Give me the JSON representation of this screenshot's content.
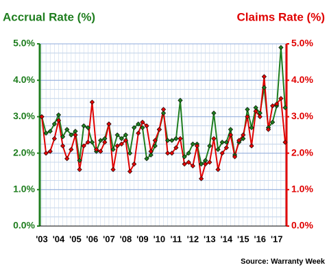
{
  "chart_data": {
    "type": "line",
    "title_left": "Accrual Rate (%)",
    "title_right": "Claims Rate (%)",
    "source": "Source: Warranty Week",
    "categories": [
      "'03",
      null,
      null,
      null,
      "'04",
      null,
      null,
      null,
      "'05",
      null,
      null,
      null,
      "'06",
      null,
      null,
      null,
      "'07",
      null,
      null,
      null,
      "'08",
      null,
      null,
      null,
      "'09",
      null,
      null,
      null,
      "'10",
      null,
      null,
      null,
      "'11",
      null,
      null,
      null,
      "'12",
      null,
      null,
      null,
      "'13",
      null,
      null,
      null,
      "'14",
      null,
      null,
      null,
      "'15",
      null,
      null,
      null,
      "'16",
      null,
      null,
      null,
      "'17",
      null,
      null
    ],
    "series": [
      {
        "name": "Accrual Rate (%)",
        "color": "#1e7d1e",
        "axis": "y",
        "values": [
          3.0,
          2.55,
          2.6,
          2.8,
          3.05,
          2.45,
          2.65,
          2.5,
          2.6,
          1.8,
          2.75,
          2.7,
          2.3,
          2.05,
          2.35,
          2.4,
          2.8,
          2.1,
          2.5,
          2.4,
          2.5,
          2.0,
          2.7,
          2.8,
          2.7,
          1.85,
          1.95,
          2.2,
          2.65,
          3.1,
          2.35,
          2.35,
          2.4,
          3.45,
          1.9,
          2.0,
          2.25,
          2.25,
          1.7,
          1.8,
          2.2,
          3.1,
          2.1,
          2.3,
          2.3,
          2.65,
          1.95,
          2.3,
          2.4,
          3.2,
          2.7,
          3.25,
          3.1,
          3.8,
          2.7,
          2.85,
          3.3,
          4.9,
          3.25
        ]
      },
      {
        "name": "Claims Rate (%)",
        "color": "#e00000",
        "axis": "y2",
        "values": [
          3.0,
          2.0,
          2.05,
          2.4,
          2.9,
          2.2,
          1.85,
          2.1,
          2.5,
          1.55,
          2.2,
          2.3,
          3.4,
          2.1,
          2.05,
          2.3,
          2.8,
          1.55,
          2.2,
          2.25,
          2.35,
          1.5,
          1.7,
          2.55,
          2.85,
          2.75,
          2.05,
          2.35,
          2.65,
          3.2,
          2.0,
          2.0,
          2.15,
          2.4,
          1.7,
          1.75,
          1.65,
          2.2,
          1.3,
          1.7,
          1.75,
          2.4,
          1.55,
          2.0,
          2.15,
          2.5,
          1.9,
          2.35,
          2.5,
          3.0,
          2.2,
          3.15,
          3.0,
          4.1,
          2.65,
          3.3,
          3.35,
          3.5,
          2.3
        ]
      }
    ],
    "ylim": [
      0,
      5
    ],
    "yticks": [
      {
        "value": 0,
        "label": "0.0%"
      },
      {
        "value": 1,
        "label": "1.0%"
      },
      {
        "value": 2,
        "label": "2.0%"
      },
      {
        "value": 3,
        "label": "3.0%"
      },
      {
        "value": 4,
        "label": "4.0%"
      },
      {
        "value": 5,
        "label": "5.0%"
      }
    ],
    "y2lim": [
      0,
      5
    ],
    "y2ticks": [
      {
        "value": 0,
        "label": "0.0%"
      },
      {
        "value": 1,
        "label": "1.0%"
      },
      {
        "value": 2,
        "label": "2.0%"
      },
      {
        "value": 3,
        "label": "3.0%"
      },
      {
        "value": 4,
        "label": "4.0%"
      },
      {
        "value": 5,
        "label": "5.0%"
      }
    ],
    "grid": true
  }
}
